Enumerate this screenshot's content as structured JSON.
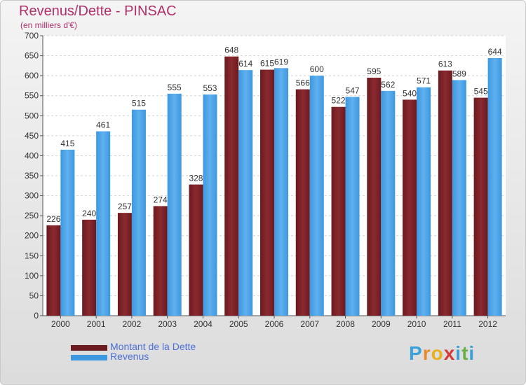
{
  "chart_data": {
    "type": "bar",
    "title": "Revenus/Dette - PINSAC",
    "subtitle": "(en milliers d'€)",
    "categories": [
      "2000",
      "2001",
      "2002",
      "2003",
      "2004",
      "2005",
      "2006",
      "2007",
      "2008",
      "2009",
      "2010",
      "2011",
      "2012"
    ],
    "series": [
      {
        "name": "Montant de la Dette",
        "values": [
          226,
          240,
          257,
          274,
          328,
          648,
          615,
          566,
          522,
          595,
          540,
          613,
          545
        ],
        "color": "#6b1a1f"
      },
      {
        "name": "Revenus",
        "values": [
          415,
          461,
          515,
          555,
          553,
          614,
          619,
          600,
          547,
          562,
          571,
          589,
          644
        ],
        "color": "#3d98e0"
      }
    ],
    "ylim": [
      0,
      700
    ],
    "yticks": [
      0,
      50,
      100,
      150,
      200,
      250,
      300,
      350,
      400,
      450,
      500,
      550,
      600,
      650,
      700
    ],
    "grid": true,
    "legend": "bottom-left"
  },
  "logo": {
    "letters": [
      "P",
      "r",
      "o",
      "x",
      "i",
      "t",
      "i"
    ],
    "colors": [
      "#3aa0d8",
      "#e88a2a",
      "#e8b020",
      "#d43a3a",
      "#3aa0d8",
      "#6ab04a",
      "#3aa0d8"
    ]
  }
}
